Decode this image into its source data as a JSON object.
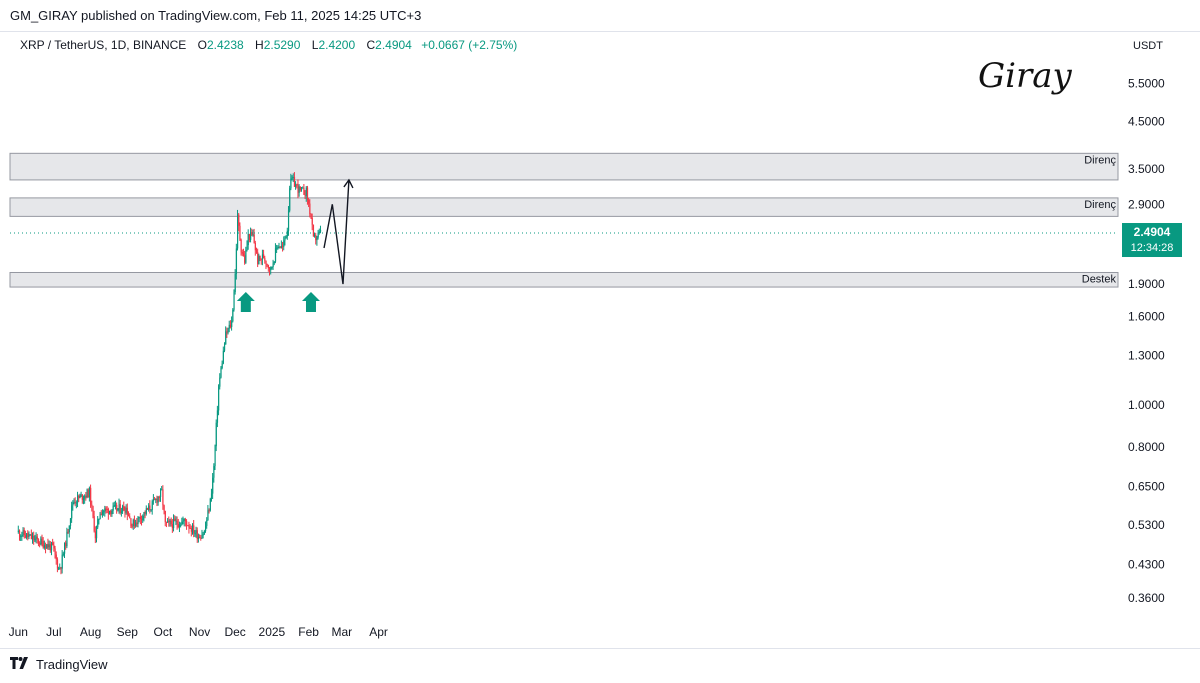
{
  "header": {
    "published_line": "GM_GIRAY published on TradingView.com, Feb 11, 2025 14:25 UTC+3"
  },
  "legend": {
    "symbol": "XRP / TetherUS, 1D, BINANCE",
    "o_label": "O",
    "o_value": "2.4238",
    "h_label": "H",
    "h_value": "2.5290",
    "l_label": "L",
    "l_value": "2.4200",
    "c_label": "C",
    "c_value": "2.4904",
    "change": "+0.0667 (+2.75%)"
  },
  "signature": "Giray",
  "footer": {
    "brand": "TradingView"
  },
  "colors": {
    "up": "#089981",
    "down": "#f23645",
    "zone_fill": "#e6e7ea",
    "zone_border": "#9598a1",
    "arrow": "#089981"
  },
  "chart_data": {
    "type": "candlestick",
    "y_scale": "log",
    "ylim": [
      0.32,
      6.4
    ],
    "price_axis_unit": "USDT",
    "y_ticks": [
      "5.5000",
      "4.5000",
      "3.5000",
      "2.9000",
      "1.9000",
      "1.6000",
      "1.3000",
      "1.0000",
      "0.8000",
      "0.6500",
      "0.5300",
      "0.4300",
      "0.3600"
    ],
    "x_ticks": [
      "Jun",
      "Jul",
      "Aug",
      "Sep",
      "Oct",
      "Nov",
      "Dec",
      "2025",
      "Feb",
      "Mar",
      "Apr"
    ],
    "last_price_label": "2.4904",
    "countdown_label": "12:34:28",
    "zones": [
      {
        "label": "Direnç",
        "low": 3.3,
        "high": 3.8
      },
      {
        "label": "Direnç",
        "low": 2.72,
        "high": 3.0
      },
      {
        "label": "Destek",
        "low": 1.87,
        "high": 2.02
      }
    ],
    "projection_path": [
      [
        2.3,
        2.9
      ],
      [
        2.9,
        1.9
      ],
      [
        1.9,
        3.3
      ]
    ],
    "anchors": [
      [
        "2024-06-01",
        0.51
      ],
      [
        "2024-06-15",
        0.49
      ],
      [
        "2024-06-30",
        0.47
      ],
      [
        "2024-07-05",
        0.42
      ],
      [
        "2024-07-07",
        0.43
      ],
      [
        "2024-07-12",
        0.5
      ],
      [
        "2024-07-17",
        0.6
      ],
      [
        "2024-07-31",
        0.63
      ],
      [
        "2024-08-05",
        0.5
      ],
      [
        "2024-08-09",
        0.57
      ],
      [
        "2024-08-31",
        0.58
      ],
      [
        "2024-09-05",
        0.53
      ],
      [
        "2024-09-20",
        0.58
      ],
      [
        "2024-09-30",
        0.63
      ],
      [
        "2024-10-03",
        0.53
      ],
      [
        "2024-10-20",
        0.54
      ],
      [
        "2024-10-31",
        0.5
      ],
      [
        "2024-11-05",
        0.51
      ],
      [
        "2024-11-10",
        0.6
      ],
      [
        "2024-11-13",
        0.72
      ],
      [
        "2024-11-17",
        1.1
      ],
      [
        "2024-11-23",
        1.45
      ],
      [
        "2024-11-28",
        1.55
      ],
      [
        "2024-12-01",
        2.0
      ],
      [
        "2024-12-03",
        2.7
      ],
      [
        "2024-12-06",
        2.3
      ],
      [
        "2024-12-09",
        2.15
      ],
      [
        "2024-12-12",
        2.45
      ],
      [
        "2024-12-16",
        2.45
      ],
      [
        "2024-12-20",
        2.15
      ],
      [
        "2024-12-25",
        2.2
      ],
      [
        "2024-12-31",
        2.05
      ],
      [
        "2025-01-06",
        2.35
      ],
      [
        "2025-01-10",
        2.3
      ],
      [
        "2025-01-14",
        2.55
      ],
      [
        "2025-01-16",
        3.2
      ],
      [
        "2025-01-18",
        3.3
      ],
      [
        "2025-01-25",
        3.1
      ],
      [
        "2025-01-30",
        3.1
      ],
      [
        "2025-02-03",
        2.7
      ],
      [
        "2025-02-05",
        2.4
      ],
      [
        "2025-02-11",
        2.49
      ]
    ]
  }
}
